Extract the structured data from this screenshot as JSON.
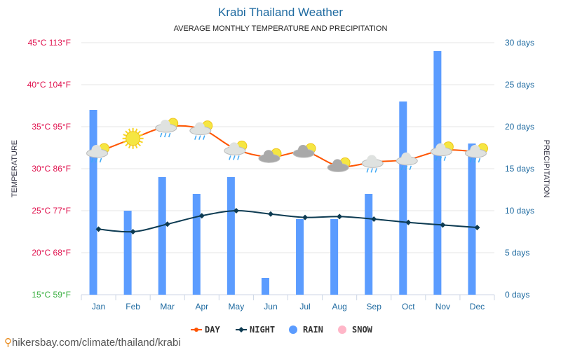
{
  "chart_data": {
    "type": "bar+line",
    "title": "Krabi Thailand Weather",
    "subtitle": "AVERAGE MONTHLY TEMPERATURE AND PRECIPITATION",
    "categories": [
      "Jan",
      "Feb",
      "Mar",
      "Apr",
      "May",
      "Jun",
      "Jul",
      "Aug",
      "Sep",
      "Oct",
      "Nov",
      "Dec"
    ],
    "y_left": {
      "label": "TEMPERATURE",
      "range": [
        15,
        45
      ],
      "ticks": [
        "15°C 59°F",
        "20°C 68°F",
        "25°C 77°F",
        "30°C 86°F",
        "35°C 95°F",
        "40°C 104°F",
        "45°C 113°F"
      ]
    },
    "y_right": {
      "label": "PRECIPITATION",
      "range": [
        0,
        30
      ],
      "ticks": [
        "0 days",
        "5 days",
        "10 days",
        "15 days",
        "20 days",
        "25 days",
        "30 days"
      ]
    },
    "grid": true,
    "legend_placement": "bottom",
    "series": [
      {
        "name": "DAY",
        "type": "line",
        "axis": "left",
        "color": "#ff5500",
        "values": [
          32,
          33.6,
          35,
          34.7,
          32.3,
          31.4,
          32,
          30.3,
          30.8,
          31.1,
          32.2,
          32
        ]
      },
      {
        "name": "NIGHT",
        "type": "line",
        "axis": "left",
        "color": "#0d3b52",
        "values": [
          22.8,
          22.5,
          23.4,
          24.4,
          25,
          24.6,
          24.2,
          24.3,
          24,
          23.6,
          23.3,
          23
        ]
      },
      {
        "name": "RAIN",
        "type": "bar",
        "axis": "right",
        "color": "#5b9cff",
        "values": [
          22,
          10,
          14,
          12,
          14,
          2,
          9,
          9,
          12,
          23,
          29,
          18
        ]
      },
      {
        "name": "SNOW",
        "type": "bar",
        "axis": "right",
        "color": "#ffb6c8",
        "values": [
          0,
          0,
          0,
          0,
          0,
          0,
          0,
          0,
          0,
          0,
          0,
          0
        ]
      }
    ],
    "weather_icons": [
      "cloud-sun-rain",
      "sun",
      "cloud-sun-rain",
      "cloud-sun-rain",
      "cloud-sun-rain",
      "cloud-sun",
      "cloud-sun",
      "cloud-sun",
      "cloud-rain",
      "cloud-rain",
      "cloud-sun-rain",
      "cloud-sun-rain"
    ]
  },
  "footer": {
    "text": "hikersbay.com/climate/thailand/krabi",
    "icon": "location-pin-icon"
  }
}
